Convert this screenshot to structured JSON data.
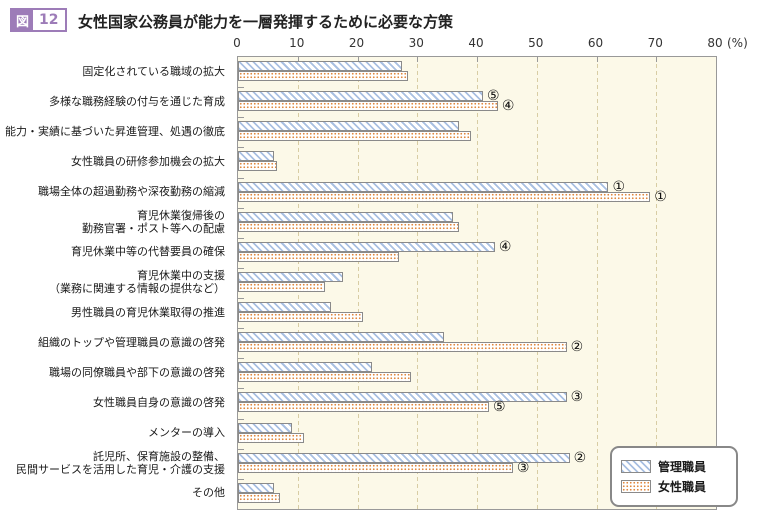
{
  "figure_badge": {
    "fig": "図",
    "num": "12"
  },
  "title": "女性国家公務員が能力を一層発揮するために必要な方策",
  "colors": {
    "badge_purple": "#9d7cb8",
    "plot_bg": "#fcf9e8",
    "grid": "#d8cda4",
    "bar_border": "#8a8a8a",
    "series_blue_hatch": "#a9c0e2",
    "series_orange_dots": "#e0883f"
  },
  "chart_data": {
    "type": "bar",
    "orientation": "horizontal",
    "title": "女性国家公務員が能力を一層発揮するために必要な方策",
    "xlabel": "",
    "ylabel": "",
    "xlim": [
      0,
      80
    ],
    "ticks": [
      0,
      10,
      20,
      30,
      40,
      50,
      60,
      70,
      80
    ],
    "unit_label": "(%)",
    "grid": "dashed-vertical",
    "legend_position": "bottom-right-inside",
    "rank_glyphs": [
      "①",
      "②",
      "③",
      "④",
      "⑤"
    ],
    "categories": [
      "固定化されている職域の拡大",
      "多様な職務経験の付与を通じた育成",
      "能力・実績に基づいた昇進管理、処遇の徹底",
      "女性職員の研修参加機会の拡大",
      "職場全体の超過勤務や深夜勤務の縮減",
      "育児休業復帰後の\n勤務官署・ポスト等への配慮",
      "育児休業中等の代替要員の確保",
      "育児休業中の支援\n（業務に関連する情報の提供など）",
      "男性職員の育児休業取得の推進",
      "組織のトップや管理職員の意識の啓発",
      "職場の同僚職員や部下の意識の啓発",
      "女性職員自身の意識の啓発",
      "メンターの導入",
      "託児所、保育施設の整備、\n民間サービスを活用した育児・介護の支援",
      "その他"
    ],
    "series": [
      {
        "name": "管理職員",
        "pattern": "blue-diagonal-hatch",
        "values": [
          27.5,
          41,
          37,
          6,
          62,
          36,
          43,
          17.5,
          15.5,
          34.5,
          22.5,
          55,
          9,
          55.5,
          6
        ],
        "ranks": [
          null,
          5,
          null,
          null,
          1,
          null,
          4,
          null,
          null,
          null,
          null,
          3,
          null,
          2,
          null
        ]
      },
      {
        "name": "女性職員",
        "pattern": "orange-dot-grid",
        "values": [
          28.5,
          43.5,
          39,
          6.5,
          69,
          37,
          27,
          14.5,
          21,
          55,
          29,
          42,
          11,
          46,
          7
        ],
        "ranks": [
          null,
          4,
          null,
          null,
          1,
          null,
          null,
          null,
          null,
          2,
          null,
          5,
          null,
          3,
          null
        ]
      }
    ]
  }
}
